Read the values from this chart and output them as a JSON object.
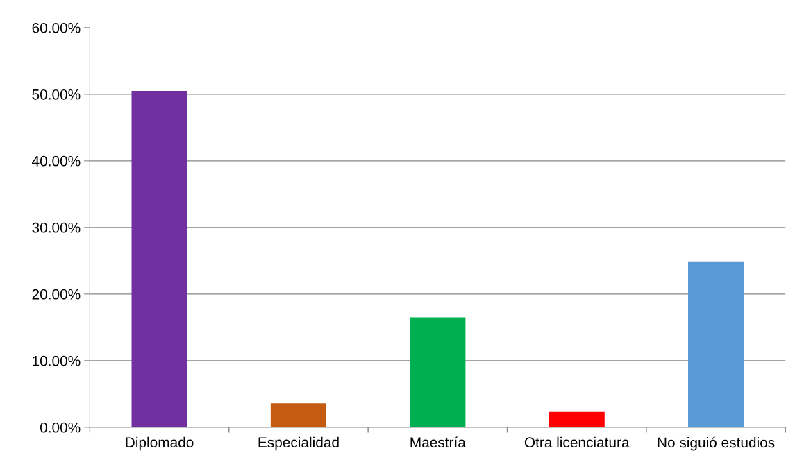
{
  "chart_data": {
    "type": "bar",
    "categories": [
      "Diplomado",
      "Especialidad",
      "Maestría",
      "Otra licenciatura",
      "No siguió estudios"
    ],
    "values": [
      50.5,
      3.6,
      16.5,
      2.3,
      24.9
    ],
    "colors": [
      "#7030a0",
      "#c55a11",
      "#00b050",
      "#ff0000",
      "#5b9bd5"
    ],
    "ylim": [
      0,
      60
    ],
    "yticks": [
      {
        "value": 0,
        "label": "0.00%"
      },
      {
        "value": 10,
        "label": "10.00%"
      },
      {
        "value": 20,
        "label": "20.00%"
      },
      {
        "value": 30,
        "label": "30.00%"
      },
      {
        "value": 40,
        "label": "40.00%"
      },
      {
        "value": 50,
        "label": "50.00%"
      },
      {
        "value": 60,
        "label": "60.00%"
      }
    ],
    "grid": "y",
    "legend": false
  }
}
